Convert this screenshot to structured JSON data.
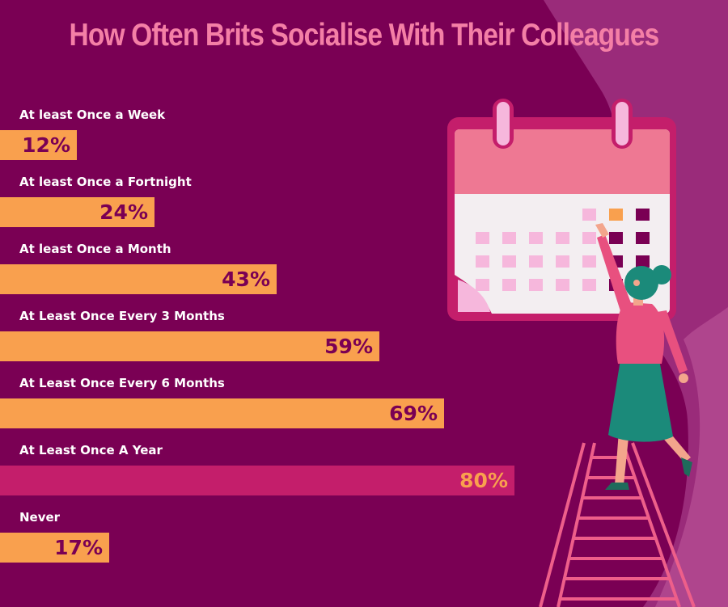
{
  "chart_data": {
    "type": "bar",
    "orientation": "horizontal",
    "title": "How Often Brits Socialise With Their Colleagues",
    "categories": [
      "At least Once a Week",
      "At least Once a Fortnight",
      "At least Once a Month",
      "At Least Once Every 3 Months",
      "At Least Once Every 6 Months",
      "At Least Once A Year",
      "Never"
    ],
    "values": [
      12,
      24,
      43,
      59,
      69,
      80,
      17
    ],
    "value_labels": [
      "12%",
      "24%",
      "43%",
      "59%",
      "69%",
      "80%",
      "17%"
    ],
    "unit": "%",
    "xlim": [
      0,
      100
    ],
    "highlight_index": 5,
    "grid": false,
    "legend": "none"
  },
  "colors": {
    "background": "#7a0054",
    "bar": "#f9a04e",
    "bar_highlight": "#c41e6b",
    "value_text": "#7a0054",
    "value_text_highlight": "#f9a04e",
    "title": "#f47fa6",
    "label": "#ffffff"
  },
  "illustration": {
    "calendar_icon": "calendar-icon",
    "person": "woman-on-ladder",
    "ladder": "ladder-icon"
  }
}
